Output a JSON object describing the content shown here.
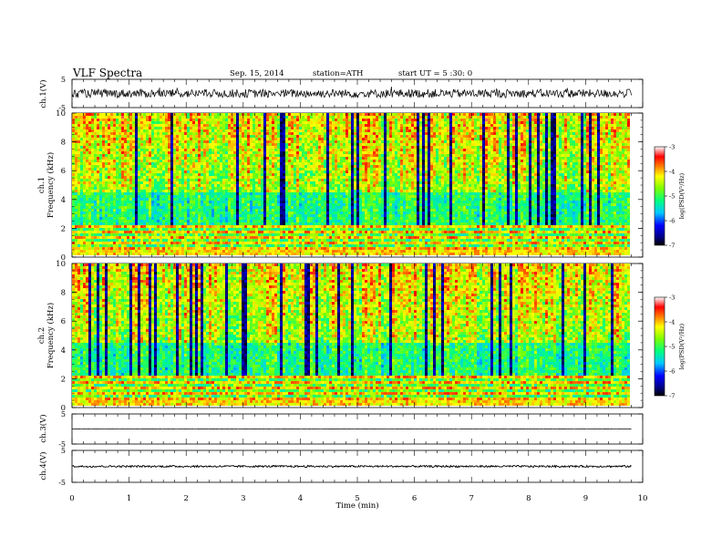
{
  "header": {
    "title": "VLF  Spectra",
    "date": "Sep. 15, 2014",
    "station": "station=ATH",
    "start": "start  UT  =   5  :30: 0"
  },
  "chart_data": [
    {
      "type": "line",
      "panel": "ch1-waveform",
      "ylabel": "ch.1(V)",
      "ylim": [
        -5,
        5
      ],
      "yticks": [
        "5",
        "-5"
      ],
      "xlim": [
        0,
        10
      ],
      "series": [
        {
          "baseline": 0,
          "amplitude_approx": 1.5,
          "color": "#000000"
        }
      ]
    },
    {
      "type": "heatmap",
      "panel": "ch1-spectrogram",
      "ylabel": [
        "ch.1",
        "Frequency  (kHz)"
      ],
      "ylim": [
        0,
        10
      ],
      "yticks": [
        "0",
        "2",
        "4",
        "6",
        "8",
        "10"
      ],
      "xlim": [
        0,
        9.8
      ],
      "colorbar": {
        "label": "log(PSD(V²/Hz)",
        "ticks": [
          "-3",
          "-4",
          "-5",
          "-6",
          "-7"
        ],
        "range": [
          -7,
          -3
        ]
      }
    },
    {
      "type": "heatmap",
      "panel": "ch2-spectrogram",
      "ylabel": [
        "ch.2",
        "Frequency  (kHz)"
      ],
      "ylim": [
        0,
        10
      ],
      "yticks": [
        "0",
        "2",
        "4",
        "6",
        "8",
        "10"
      ],
      "xlim": [
        0,
        9.8
      ],
      "colorbar": {
        "label": "log(PSD(V²/Hz)",
        "ticks": [
          "-3",
          "-4",
          "-5",
          "-6",
          "-7"
        ],
        "range": [
          -7,
          -3
        ]
      }
    },
    {
      "type": "line",
      "panel": "ch3-waveform",
      "ylabel": "ch.3(V)",
      "ylim": [
        -5,
        5
      ],
      "yticks": [
        "5",
        "-5"
      ],
      "series": [
        {
          "baseline": 0,
          "amplitude_approx": 0.1,
          "color": "#000000"
        }
      ]
    },
    {
      "type": "line",
      "panel": "ch4-waveform",
      "ylabel": "ch.4(V)",
      "ylim": [
        -5,
        5
      ],
      "yticks": [
        "5",
        "-5"
      ],
      "series": [
        {
          "baseline": 0,
          "amplitude_approx": 0.3,
          "color": "#000000"
        }
      ]
    }
  ],
  "xaxis": {
    "label": "Time  (min)",
    "ticks": [
      "0",
      "1",
      "2",
      "3",
      "4",
      "5",
      "6",
      "7",
      "8",
      "9",
      "10"
    ],
    "range": [
      0,
      10
    ]
  }
}
